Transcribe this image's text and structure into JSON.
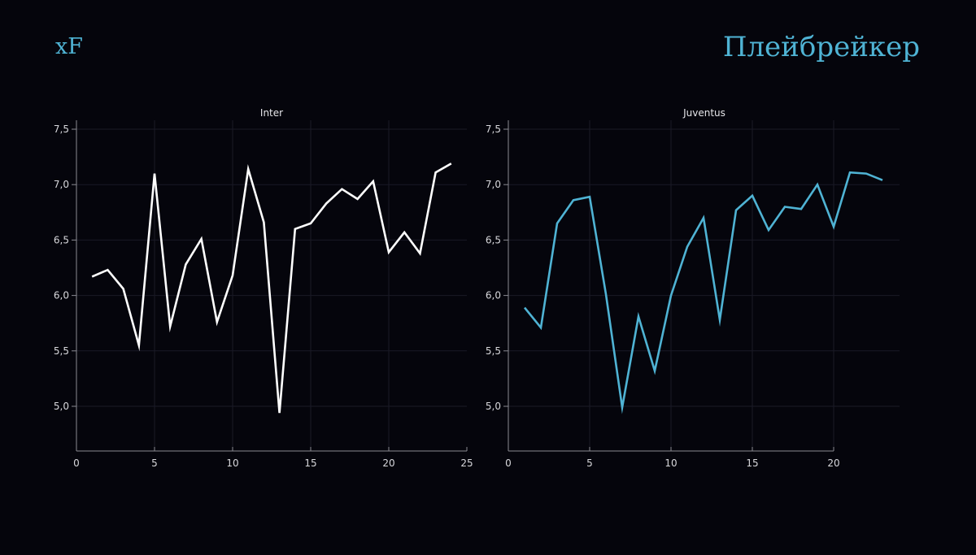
{
  "header": {
    "left_label": "xF",
    "right_label": "Плейбрейкер"
  },
  "chart_data": [
    {
      "type": "line",
      "title": "Inter",
      "color": "#ffffff",
      "xlim": [
        0,
        25
      ],
      "ylim": [
        4.73,
        7.5
      ],
      "x_ticks": [
        0,
        5,
        10,
        15,
        20,
        25
      ],
      "x_tick_labels": [
        "0",
        "5",
        "10",
        "15",
        "20",
        "25"
      ],
      "y_ticks": [
        5.0,
        5.5,
        6.0,
        6.5,
        7.0,
        7.5
      ],
      "y_tick_labels": [
        "5,0",
        "5,5",
        "6,0",
        "6,5",
        "7,0",
        "7,5"
      ],
      "grid": true,
      "x": [
        1,
        2,
        3,
        4,
        5,
        6,
        7,
        8,
        9,
        10,
        11,
        12,
        13,
        14,
        15,
        16,
        17,
        18,
        19,
        20,
        21,
        22,
        23,
        24
      ],
      "values": [
        6.17,
        6.23,
        6.06,
        5.55,
        7.1,
        5.72,
        6.28,
        6.51,
        5.76,
        6.18,
        7.14,
        6.66,
        4.94,
        6.6,
        6.65,
        6.83,
        6.96,
        6.87,
        7.03,
        6.39,
        6.57,
        6.38,
        7.11,
        7.19
      ]
    },
    {
      "type": "line",
      "title": "Juventus",
      "color": "#4fb3d4",
      "xlim": [
        0,
        24
      ],
      "ylim": [
        4.73,
        7.5
      ],
      "x_ticks": [
        0,
        5,
        10,
        15,
        20
      ],
      "x_tick_labels": [
        "0",
        "5",
        "10",
        "15",
        "20"
      ],
      "y_ticks": [
        5.0,
        5.5,
        6.0,
        6.5,
        7.0,
        7.5
      ],
      "y_tick_labels": [
        "5,0",
        "5,5",
        "6,0",
        "6,5",
        "7,0",
        "7,5"
      ],
      "grid": true,
      "x": [
        1,
        2,
        3,
        4,
        5,
        6,
        7,
        8,
        9,
        10,
        11,
        12,
        13,
        14,
        15,
        16,
        17,
        18,
        19,
        20,
        21,
        22,
        23
      ],
      "values": [
        5.89,
        5.71,
        6.65,
        6.86,
        6.89,
        6.01,
        4.99,
        5.81,
        5.32,
        6.0,
        6.44,
        6.7,
        5.78,
        6.77,
        6.9,
        6.59,
        6.8,
        6.78,
        7.0,
        6.62,
        7.11,
        7.1,
        7.04
      ]
    }
  ]
}
